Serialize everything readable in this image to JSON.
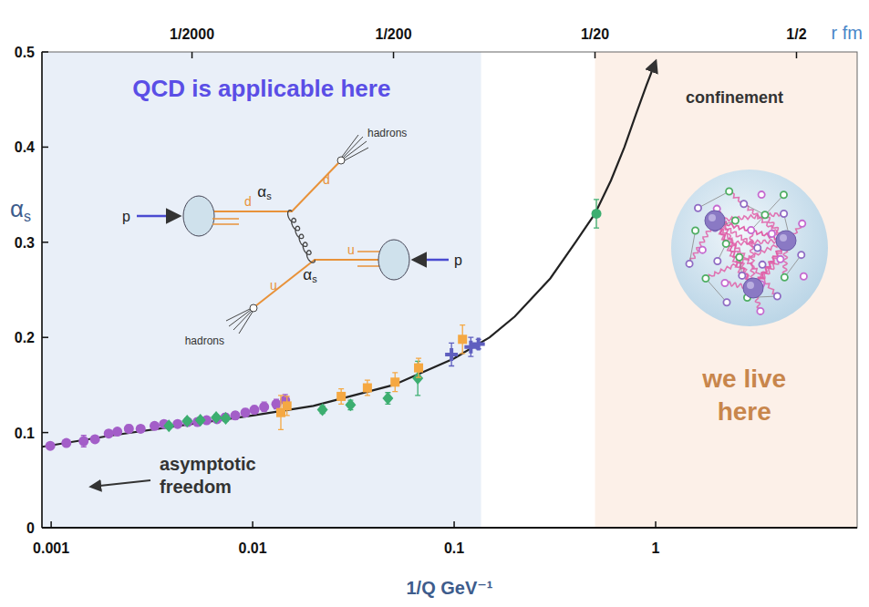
{
  "chart_data": {
    "type": "scatter",
    "log": "x",
    "grid": false,
    "x_label": "1/Q GeV⁻¹",
    "y_label": "αs",
    "x2_label": "r fm",
    "xlim": [
      0.0009,
      10
    ],
    "xticks": [
      0.001,
      0.01,
      0.1,
      1
    ],
    "x2lim": [
      9e-05,
      1
    ],
    "x2ticks": [
      {
        "value": 0.0005,
        "label": "1/2000"
      },
      {
        "value": 0.005,
        "label": "1/200"
      },
      {
        "value": 0.05,
        "label": "1/20"
      },
      {
        "value": 0.5,
        "label": "1/2"
      }
    ],
    "ylim": [
      0,
      0.5
    ],
    "yticks": [
      0,
      0.1,
      0.2,
      0.3,
      0.4,
      0.5
    ],
    "regions": [
      {
        "label": "QCD is applicable here",
        "x": [
          0.0009,
          0.136
        ],
        "color": "#e9eff8"
      },
      {
        "label": "we live here",
        "x": [
          0.5,
          10
        ],
        "color": "#fcf0e8"
      }
    ],
    "annotations": [
      "confinement",
      "asymptotic freedom"
    ],
    "diagram": {
      "protons": [
        "p",
        "p"
      ],
      "quarks": [
        "d",
        "d",
        "u",
        "u"
      ],
      "couplings": [
        "αs",
        "αs"
      ],
      "jets": [
        "hadrons",
        "hadrons"
      ]
    },
    "series": [
      {
        "type": "scatter",
        "marker": "circle",
        "color": "#a35ec8",
        "x": [
          0.00099,
          0.00119,
          0.00145,
          0.00165,
          0.00193,
          0.00213,
          0.00243,
          0.00278,
          0.00326,
          0.00363,
          0.00424,
          0.00476,
          0.00532,
          0.00591,
          0.00665,
          0.00732,
          0.0082,
          0.0092,
          0.0102,
          0.0114,
          0.0131,
          0.0145
        ],
        "values": [
          0.086,
          0.089,
          0.091,
          0.093,
          0.099,
          0.101,
          0.104,
          0.104,
          0.107,
          0.109,
          0.109,
          0.111,
          0.111,
          0.113,
          0.114,
          0.116,
          0.118,
          0.121,
          0.124,
          0.127,
          0.13,
          0.134
        ],
        "errors": [
          0.003,
          0.003,
          0.006,
          0.003,
          0.003,
          0.003,
          0.004,
          0.003,
          0.003,
          0.003,
          0.003,
          0.003,
          0.004,
          0.003,
          0.003,
          0.004,
          0.004,
          0.004,
          0.004,
          0.005,
          0.005,
          0.006
        ]
      },
      {
        "type": "scatter",
        "marker": "diamond",
        "color": "#3cae70",
        "x": [
          0.00384,
          0.00473,
          0.0055,
          0.00659,
          0.00735,
          0.0222,
          0.0306,
          0.0469,
          0.066
        ],
        "values": [
          0.107,
          0.112,
          0.113,
          0.116,
          0.115,
          0.124,
          0.129,
          0.136,
          0.157
        ],
        "errors": [
          0.003,
          0.003,
          0.003,
          0.003,
          0.003,
          0.004,
          0.005,
          0.006,
          0.018
        ]
      },
      {
        "type": "scatter",
        "marker": "square",
        "color": "#f5a842",
        "x": [
          0.0138,
          0.0148,
          0.0275,
          0.0371,
          0.0509,
          0.0666,
          0.11
        ],
        "values": [
          0.121,
          0.128,
          0.138,
          0.147,
          0.153,
          0.168,
          0.198
        ],
        "errors": [
          0.018,
          0.01,
          0.008,
          0.008,
          0.01,
          0.01,
          0.015
        ]
      },
      {
        "type": "scatter",
        "marker": "plus",
        "color": "#5f5fbf",
        "x": [
          0.097,
          0.121,
          0.132
        ],
        "values": [
          0.182,
          0.19,
          0.193
        ],
        "errors": [
          0.012,
          0.01,
          0.005
        ]
      },
      {
        "type": "scatter",
        "marker": "circle",
        "color": "#3cae70",
        "x": [
          0.508
        ],
        "values": [
          0.33
        ],
        "errors": [
          0.015
        ]
      },
      {
        "type": "line",
        "color": "#222222",
        "x": [
          0.0009,
          0.002,
          0.005,
          0.01,
          0.02,
          0.05,
          0.1,
          0.15,
          0.2,
          0.3,
          0.4,
          0.5,
          0.6,
          0.7,
          0.8,
          0.9,
          1.0
        ],
        "values": [
          0.085,
          0.097,
          0.109,
          0.118,
          0.128,
          0.15,
          0.178,
          0.2,
          0.222,
          0.262,
          0.3,
          0.33,
          0.365,
          0.4,
          0.435,
          0.465,
          0.49
        ]
      }
    ]
  }
}
